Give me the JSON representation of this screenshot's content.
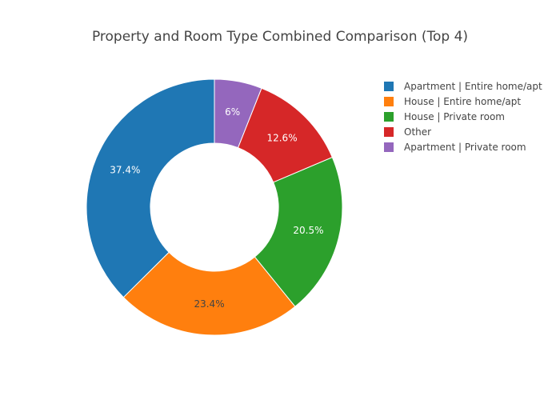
{
  "chart_data": {
    "type": "pie",
    "hole": 0.5,
    "title": "Property and Room Type Combined Comparison (Top 4)",
    "labels": [
      "Apartment | Entire home/apt",
      "House | Entire home/apt",
      "House | Private room",
      "Other",
      "Apartment | Private room"
    ],
    "values": [
      37.4,
      23.4,
      20.5,
      12.6,
      6
    ],
    "value_labels": [
      "37.4%",
      "23.4%",
      "20.5%",
      "12.6%",
      "6%"
    ],
    "colors": [
      "#1f77b4",
      "#ff7f0e",
      "#2ca02c",
      "#d62728",
      "#9467bd"
    ],
    "label_colors": [
      "#ffffff",
      "#444444",
      "#ffffff",
      "#ffffff",
      "#ffffff"
    ],
    "direction": "counterclockwise",
    "legend_position": "right"
  }
}
